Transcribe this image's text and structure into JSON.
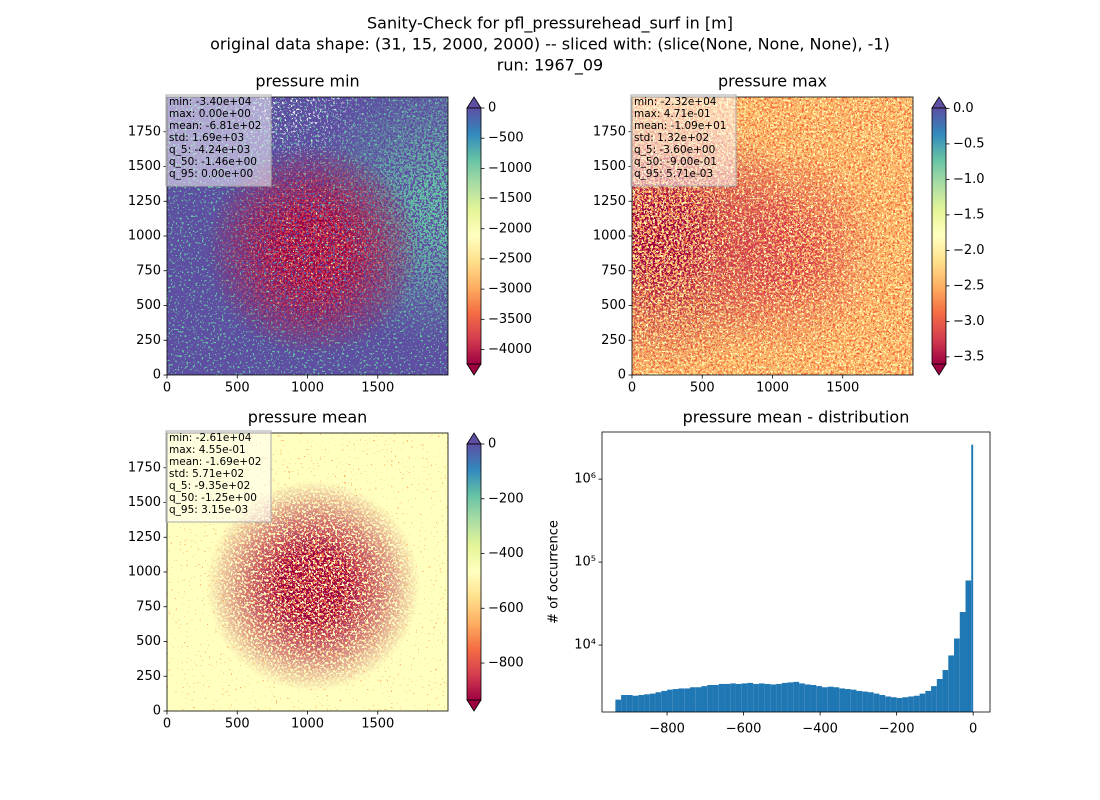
{
  "figure": {
    "title": [
      "Sanity-Check for pfl_pressurehead_surf in [m]",
      "original data shape: (31, 15, 2000, 2000) -- sliced with: (slice(None, None, None), -1)",
      "run: 1967_09"
    ]
  },
  "chart_data": [
    {
      "type": "heatmap",
      "title": "pressure min",
      "cmap": "Spectral",
      "stats": [
        "min: -3.40e+04",
        "max: 0.00e+00",
        "mean: -6.81e+02",
        "std: 1.69e+03",
        "q_5: -4.24e+03",
        "q_50: -1.46e+00",
        "q_95: 0.00e+00"
      ],
      "xlim": [
        0,
        2000
      ],
      "ylim": [
        0,
        2000
      ],
      "xticks": [
        0,
        500,
        1000,
        1500
      ],
      "yticks": [
        0,
        250,
        500,
        750,
        1000,
        1250,
        1500,
        1750
      ],
      "clim": [
        -4240,
        0
      ],
      "cticks": [
        0,
        {
          "value": -500,
          "label": "−500"
        },
        {
          "value": -1000,
          "label": "−1000"
        },
        {
          "value": -1500,
          "label": "−1500"
        },
        {
          "value": -2000,
          "label": "−2000"
        },
        {
          "value": -2500,
          "label": "−2500"
        },
        {
          "value": -3000,
          "label": "−3000"
        },
        {
          "value": -3500,
          "label": "−3500"
        },
        {
          "value": -4000,
          "label": "−4000"
        }
      ]
    },
    {
      "type": "heatmap",
      "title": "pressure max",
      "cmap": "Spectral",
      "stats": [
        "min: -2.32e+04",
        "max: 4.71e-01",
        "mean: -1.09e+01",
        "std: 1.32e+02",
        "q_5: -3.60e+00",
        "q_50: -9.00e-01",
        "q_95: 5.71e-03"
      ],
      "xlim": [
        0,
        2000
      ],
      "ylim": [
        0,
        2000
      ],
      "xticks": [
        0,
        500,
        1000,
        1500
      ],
      "yticks": [
        0,
        250,
        500,
        750,
        1000,
        1250,
        1500,
        1750
      ],
      "clim": [
        -3.6,
        0.00571
      ],
      "cticks": [
        {
          "value": 0,
          "label": "0.0"
        },
        {
          "value": -0.5,
          "label": "−0.5"
        },
        {
          "value": -1,
          "label": "−1.0"
        },
        {
          "value": -1.5,
          "label": "−1.5"
        },
        {
          "value": -2,
          "label": "−2.0"
        },
        {
          "value": -2.5,
          "label": "−2.5"
        },
        {
          "value": -3,
          "label": "−3.0"
        },
        {
          "value": -3.5,
          "label": "−3.5"
        }
      ]
    },
    {
      "type": "heatmap",
      "title": "pressure mean",
      "cmap": "Spectral",
      "stats": [
        "min: -2.61e+04",
        "max: 4.55e-01",
        "mean: -1.69e+02",
        "std: 5.71e+02",
        "q_5: -9.35e+02",
        "q_50: -1.25e+00",
        "q_95: 3.15e-03"
      ],
      "xlim": [
        0,
        2000
      ],
      "ylim": [
        0,
        2000
      ],
      "xticks": [
        0,
        500,
        1000,
        1500
      ],
      "yticks": [
        0,
        250,
        500,
        750,
        1000,
        1250,
        1500,
        1750
      ],
      "clim": [
        -935,
        0.00315
      ],
      "cticks": [
        0,
        {
          "value": -200,
          "label": "−200"
        },
        {
          "value": -400,
          "label": "−400"
        },
        {
          "value": -600,
          "label": "−600"
        },
        {
          "value": -800,
          "label": "−800"
        }
      ]
    },
    {
      "type": "histogram",
      "title": "pressure mean - distribution",
      "ylabel": "# of occurrence",
      "color": "#1f77b4",
      "log_y": true,
      "bins": [
        -935,
        -920,
        -905,
        -890,
        -875,
        -860,
        -845,
        -830,
        -815,
        -800,
        -785,
        -770,
        -755,
        -740,
        -725,
        -710,
        -695,
        -680,
        -665,
        -650,
        -635,
        -620,
        -605,
        -590,
        -575,
        -560,
        -545,
        -530,
        -515,
        -500,
        -485,
        -470,
        -455,
        -440,
        -425,
        -410,
        -395,
        -380,
        -365,
        -350,
        -335,
        -320,
        -305,
        -290,
        -275,
        -260,
        -245,
        -230,
        -215,
        -200,
        -185,
        -170,
        -155,
        -140,
        -125,
        -110,
        -95,
        -80,
        -65,
        -50,
        -35,
        -20,
        -5,
        0
      ],
      "values": [
        2200,
        2500,
        2500,
        2450,
        2500,
        2550,
        2600,
        2700,
        2800,
        2900,
        2950,
        3000,
        3000,
        3100,
        3100,
        3200,
        3300,
        3300,
        3400,
        3400,
        3450,
        3400,
        3450,
        3500,
        3400,
        3450,
        3400,
        3350,
        3400,
        3500,
        3550,
        3600,
        3450,
        3350,
        3300,
        3200,
        3100,
        3150,
        3100,
        3000,
        2950,
        2900,
        2800,
        2750,
        2700,
        2600,
        2500,
        2400,
        2350,
        2300,
        2350,
        2400,
        2450,
        2600,
        2800,
        3200,
        3900,
        5000,
        7500,
        12000,
        25000,
        60000,
        2600000
      ],
      "xlim": [
        -970,
        44
      ],
      "ylim": [
        1560,
        3700000
      ],
      "xticks": [
        {
          "value": -800,
          "label": "−800"
        },
        {
          "value": -600,
          "label": "−600"
        },
        {
          "value": -400,
          "label": "−400"
        },
        {
          "value": -200,
          "label": "−200"
        },
        0
      ],
      "yticks": [
        {
          "value": 10000,
          "label": "10⁴"
        },
        {
          "value": 100000,
          "label": "10⁵"
        },
        {
          "value": 1000000,
          "label": "10⁶"
        }
      ]
    }
  ]
}
